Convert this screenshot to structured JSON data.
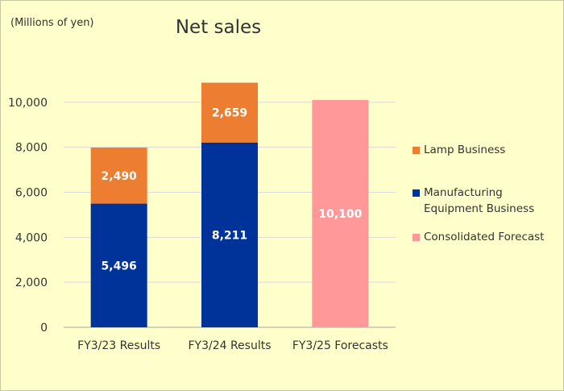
{
  "chart_data": {
    "type": "bar",
    "stacked": true,
    "title": "Net sales",
    "unit_label": "(Millions of yen)",
    "categories": [
      "FY3/23 Results",
      "FY3/24 Results",
      "FY3/25 Forecasts"
    ],
    "ylim": [
      0,
      12000
    ],
    "yticks": [
      0,
      2000,
      4000,
      6000,
      8000,
      10000
    ],
    "ytick_labels": [
      "0",
      "2,000",
      "4,000",
      "6,000",
      "8,000",
      "10,000"
    ],
    "grid": true,
    "legend_position": "right",
    "series": [
      {
        "name": "Manufacturing\nEquipment Business",
        "color": "#003399",
        "values": [
          5496,
          8211,
          null
        ],
        "labels": [
          "5,496",
          "8,211",
          ""
        ]
      },
      {
        "name": "Lamp Business",
        "color": "#ed7d31",
        "values": [
          2490,
          2659,
          null
        ],
        "labels": [
          "2,490",
          "2,659",
          ""
        ]
      },
      {
        "name": "Consolidated Forecast",
        "color": "#ff9999",
        "values": [
          null,
          null,
          10100
        ],
        "labels": [
          "",
          "",
          "10,100"
        ]
      }
    ],
    "legend_order": [
      1,
      0,
      2
    ]
  }
}
